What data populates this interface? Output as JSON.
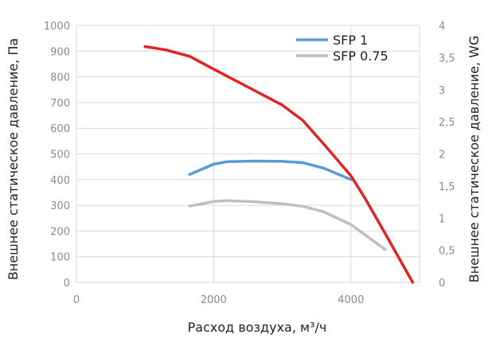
{
  "chart_data": {
    "type": "line",
    "xlabel": "Расход воздуха, м³/ч",
    "ylabel": "Внешнее статическое давление, Па",
    "y2label": "Внешнее статическое давление, WG",
    "xlim": [
      0,
      5000
    ],
    "ylim": [
      0,
      1000
    ],
    "y2lim": [
      0,
      4
    ],
    "x_ticks": [
      0,
      2000,
      4000
    ],
    "x_tick_labels": [
      "0",
      "2000",
      "4000"
    ],
    "y_ticks": [
      0,
      100,
      200,
      300,
      400,
      500,
      600,
      700,
      800,
      900,
      1000
    ],
    "y_tick_labels": [
      "0",
      "100",
      "200",
      "300",
      "400",
      "500",
      "600",
      "700",
      "800",
      "900",
      "1000"
    ],
    "y2_ticks": [
      0,
      0.5,
      1,
      1.5,
      2,
      2.5,
      3,
      3.5,
      4
    ],
    "y2_tick_labels": [
      "0",
      "0,5",
      "1",
      "1,5",
      "2",
      "2,5",
      "3",
      "3,5",
      "4"
    ],
    "grid": true,
    "legend_position": "top-right",
    "series": [
      {
        "name": "",
        "color": "#e02424",
        "x": [
          1000,
          1300,
          1650,
          2000,
          2500,
          3000,
          3300,
          3600,
          4000,
          4200,
          4500,
          4900
        ],
        "y": [
          918,
          905,
          880,
          830,
          760,
          690,
          630,
          540,
          415,
          330,
          190,
          0
        ]
      },
      {
        "name": "SFP 1",
        "color": "#5b9bd5",
        "x": [
          1650,
          2000,
          2200,
          2600,
          3000,
          3300,
          3600,
          4000
        ],
        "y": [
          420,
          460,
          470,
          472,
          471,
          466,
          445,
          400
        ]
      },
      {
        "name": "SFP 0.75",
        "color": "#bfbfbf",
        "x": [
          1650,
          2000,
          2200,
          2600,
          3000,
          3300,
          3600,
          4000,
          4500
        ],
        "y": [
          297,
          315,
          318,
          314,
          306,
          296,
          275,
          225,
          128
        ]
      }
    ]
  }
}
